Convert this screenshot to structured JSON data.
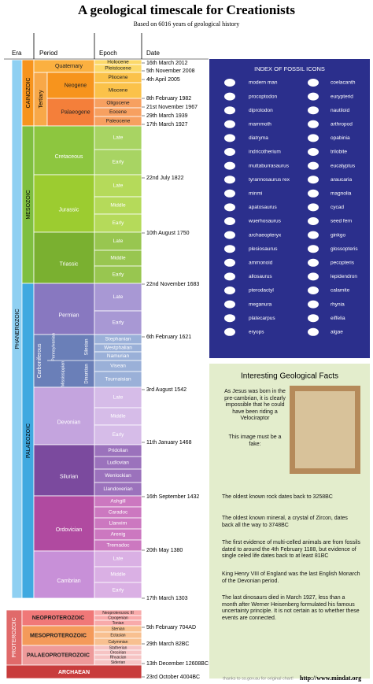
{
  "title": "A geological timescale for Creationists",
  "subtitle": "Based on 6016 years of geological history",
  "headers": [
    "Era",
    "Period",
    "Epoch",
    "Date"
  ],
  "eras": {
    "phanerozoic": "PHANEROZOIC",
    "cainozoic": "CAINOZOIC",
    "mesozoic": "MESOZOIC",
    "palaeozoic": "PALAEOZOIC",
    "proterozoic": "PROTEROZOIC",
    "archaean": "ARCHAEAN"
  },
  "tertiary": "Tertiary",
  "periods": [
    {
      "name": "Quaternary",
      "epochs": [
        "Holocene",
        "Pleistocene"
      ]
    },
    {
      "name": "Neogene",
      "epochs": [
        "Pliocene",
        "Miocene"
      ]
    },
    {
      "name": "Palaeogene",
      "epochs": [
        "Oligocene",
        "Eocene",
        "Paleocene"
      ]
    },
    {
      "name": "Cretaceous",
      "epochs": [
        "Late",
        "Early"
      ]
    },
    {
      "name": "Jurassic",
      "epochs": [
        "Late",
        "Middle",
        "Early"
      ]
    },
    {
      "name": "Triassic",
      "epochs": [
        "Late",
        "Middle",
        "Early"
      ]
    },
    {
      "name": "Permian",
      "epochs": [
        "Late",
        "Early"
      ]
    },
    {
      "name": "Carboniferous",
      "epochs": [
        "Stephanian",
        "Westphalian",
        "Namurian",
        "Visean",
        "Tournaisian"
      ]
    },
    {
      "name": "Devonian",
      "epochs": [
        "Late",
        "Middle",
        "Early"
      ]
    },
    {
      "name": "Silurian",
      "epochs": [
        "Pridolian",
        "Ludlovian",
        "Wenlockian",
        "Llandoverian"
      ]
    },
    {
      "name": "Ordovician",
      "epochs": [
        "Ashgill",
        "Caradoc",
        "Llanvirn",
        "Arenig",
        "Tremadoc"
      ]
    },
    {
      "name": "Cambrian",
      "epochs": [
        "Late",
        "Middle",
        "Early"
      ]
    }
  ],
  "carboniferous_subdivisions": [
    "Pennsylvanian",
    "Mississippian",
    "Silesian",
    "Dinantian"
  ],
  "proterozoic_periods": [
    {
      "name": "NEOPROTEROZOIC",
      "epochs": [
        "Neoproterozoic III",
        "Cryogenian",
        "Tonian"
      ]
    },
    {
      "name": "MESOPROTEROZOIC",
      "epochs": [
        "Stenian",
        "Ectasian",
        "Calymmian"
      ]
    },
    {
      "name": "PALAEOPROTEROZOIC",
      "epochs": [
        "Statherian",
        "Orosirian",
        "Rhyacian",
        "Siderian"
      ]
    }
  ],
  "dates": [
    "16th March 2012",
    "5th November 2008",
    "4th April 2005",
    "8th February 1982",
    "21st November 1967",
    "29th March 1939",
    "17th March 1927",
    "22nd July 1822",
    "10th August 1750",
    "22nd November 1683",
    "6th February 1621",
    "3rd August 1542",
    "11th January 1468",
    "16th September 1432",
    "20th May 1380",
    "17th March 1303",
    "5th February 704AD",
    "29th March 82BC",
    "13th December 12608BC",
    "23rd October 4004BC"
  ],
  "index": {
    "title": "INDEX OF FOSSIL ICONS",
    "left": [
      "modern man",
      "procoptodon",
      "diprotodon",
      "mammoth",
      "diatryma",
      "indricotherium",
      "muttaburrasaurus",
      "tyrannosaurus rex",
      "minmi",
      "apatosaurus",
      "wuerhosaurus",
      "archaeopteryx",
      "plesiosaurus",
      "ammonoid",
      "allosaurus",
      "pterodactyl",
      "meganura",
      "platecarpus",
      "eryops"
    ],
    "right": [
      "coelacanth",
      "eurypterid",
      "nautiloid",
      "arthropod",
      "opabinia",
      "trilobite",
      "eucalyptus",
      "araucaria",
      "magnolia",
      "cycad",
      "seed fern",
      "ginkgo",
      "glossopteris",
      "pecopteris",
      "lepidendron",
      "calamite",
      "rhynia",
      "eiffelia",
      "algae"
    ]
  },
  "facts": {
    "title": "Interesting Geological Facts",
    "intro": "As Jesus was born in the pre-cambrian, it is clearly impossible that he could have been riding a Velociraptor",
    "caption": "This image must be a fake:",
    "items": [
      "The oldest known rock dates back to 3258BC",
      "The oldest known mineral, a crystal of Zircon, dates back all the way to 3748BC",
      "The first evidence of multi-celled animals are from fossils dated to around the 4th February 1188, but evidence of single celed life dates back to at least 81BC",
      "King Henry VIII of England was the last English Monarch of the Devonian period.",
      "The last dinosaurs died in March 1927, less than a month after Werner Heisenberg formulated his famous uncertainty principle. It is not certain as to whether these events are connected."
    ]
  },
  "footer": {
    "credit": "thanks to ss.gov.au for original chart!",
    "url": "http://www.mindat.org"
  }
}
